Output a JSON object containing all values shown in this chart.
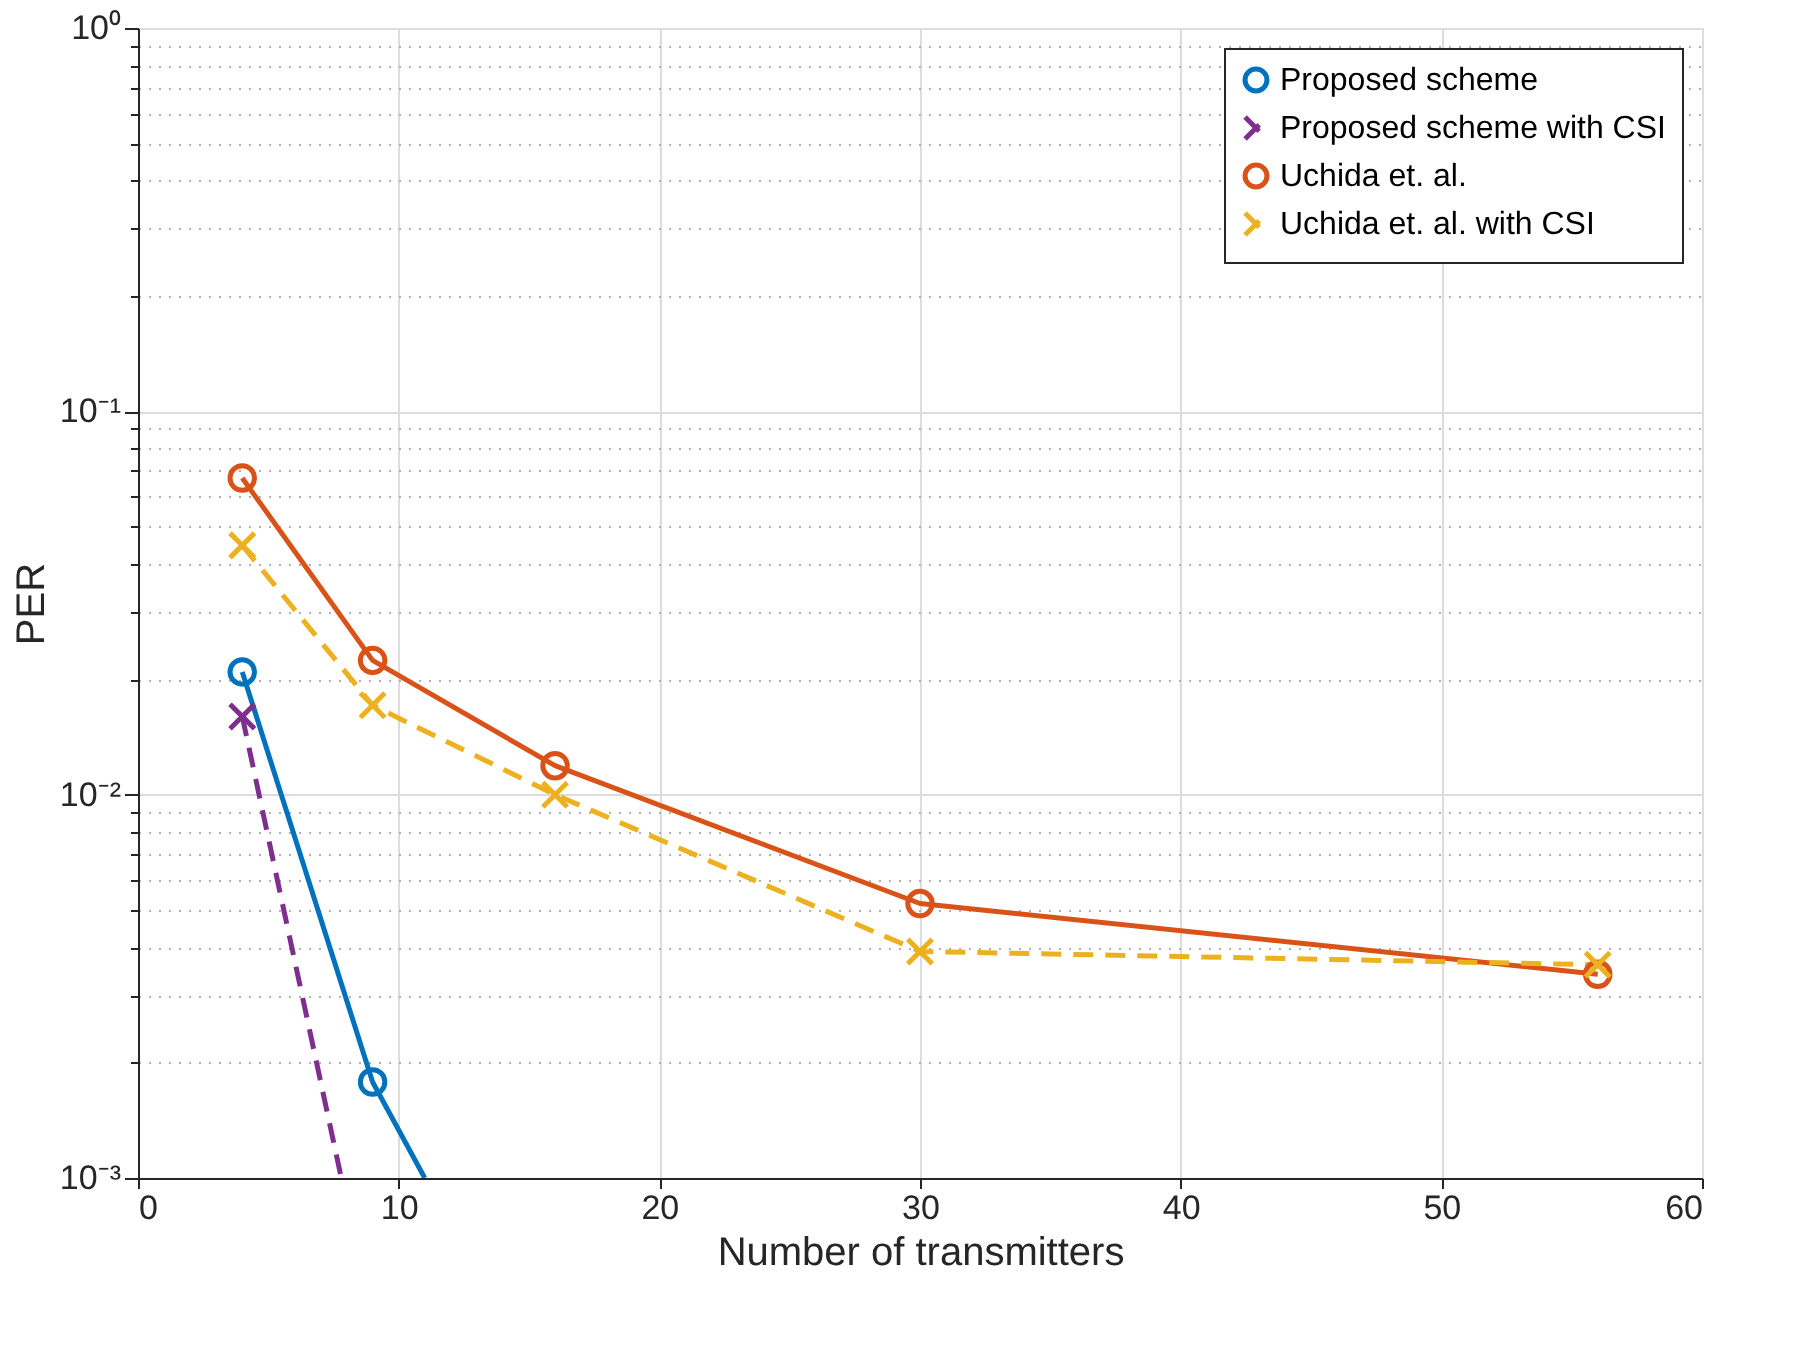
{
  "chart_data": {
    "type": "line",
    "xlabel": "Number of transmitters",
    "ylabel": "PER",
    "log": "y",
    "xlim": [
      0,
      60
    ],
    "xticks": [
      0,
      10,
      20,
      30,
      40,
      50,
      60
    ],
    "ylim": [
      0.001,
      1
    ],
    "yticks": [
      {
        "value": 0.001,
        "label": "10⁻³"
      },
      {
        "value": 0.002,
        "label": null
      },
      {
        "value": 0.003,
        "label": null
      },
      {
        "value": 0.004,
        "label": null
      },
      {
        "value": 0.005,
        "label": null
      },
      {
        "value": 0.006,
        "label": null
      },
      {
        "value": 0.007,
        "label": null
      },
      {
        "value": 0.008,
        "label": null
      },
      {
        "value": 0.009,
        "label": null
      },
      {
        "value": 0.01,
        "label": "10⁻²"
      },
      {
        "value": 0.02,
        "label": null
      },
      {
        "value": 0.03,
        "label": null
      },
      {
        "value": 0.04,
        "label": null
      },
      {
        "value": 0.05,
        "label": null
      },
      {
        "value": 0.06,
        "label": null
      },
      {
        "value": 0.07,
        "label": null
      },
      {
        "value": 0.08,
        "label": null
      },
      {
        "value": 0.09,
        "label": null
      },
      {
        "value": 0.1,
        "label": "10⁻¹"
      },
      {
        "value": 0.2,
        "label": null
      },
      {
        "value": 0.3,
        "label": null
      },
      {
        "value": 0.4,
        "label": null
      },
      {
        "value": 0.5,
        "label": null
      },
      {
        "value": 0.6,
        "label": null
      },
      {
        "value": 0.7,
        "label": null
      },
      {
        "value": 0.8,
        "label": null
      },
      {
        "value": 0.9,
        "label": null
      },
      {
        "value": 1,
        "label": "10⁰"
      }
    ],
    "grid": true,
    "legend": "top right",
    "series": [
      {
        "name": "Proposed scheme",
        "color": "#0072bd",
        "marker": "circle",
        "line_style": "solid",
        "x": [
          4,
          9,
          11
        ],
        "values": [
          0.0209,
          0.00178,
          0.001
        ]
      },
      {
        "name": "Proposed scheme with CSI",
        "color": "#7e2f8e",
        "marker": "cross",
        "line_style": "dashed",
        "x": [
          4,
          7.8
        ],
        "values": [
          0.016,
          0.001
        ]
      },
      {
        "name": "Uchida et. al.",
        "color": "#d95319",
        "marker": "circle",
        "line_style": "solid",
        "x": [
          4,
          9,
          16,
          30,
          56
        ],
        "values": [
          0.067,
          0.0224,
          0.0119,
          0.0052,
          0.0034
        ]
      },
      {
        "name": "Uchida et. al. with CSI",
        "color": "#edb120",
        "marker": "cross",
        "line_style": "dashed",
        "x": [
          4,
          9,
          16,
          30,
          56
        ],
        "values": [
          0.0447,
          0.0171,
          0.01,
          0.0039,
          0.0036
        ]
      }
    ]
  }
}
